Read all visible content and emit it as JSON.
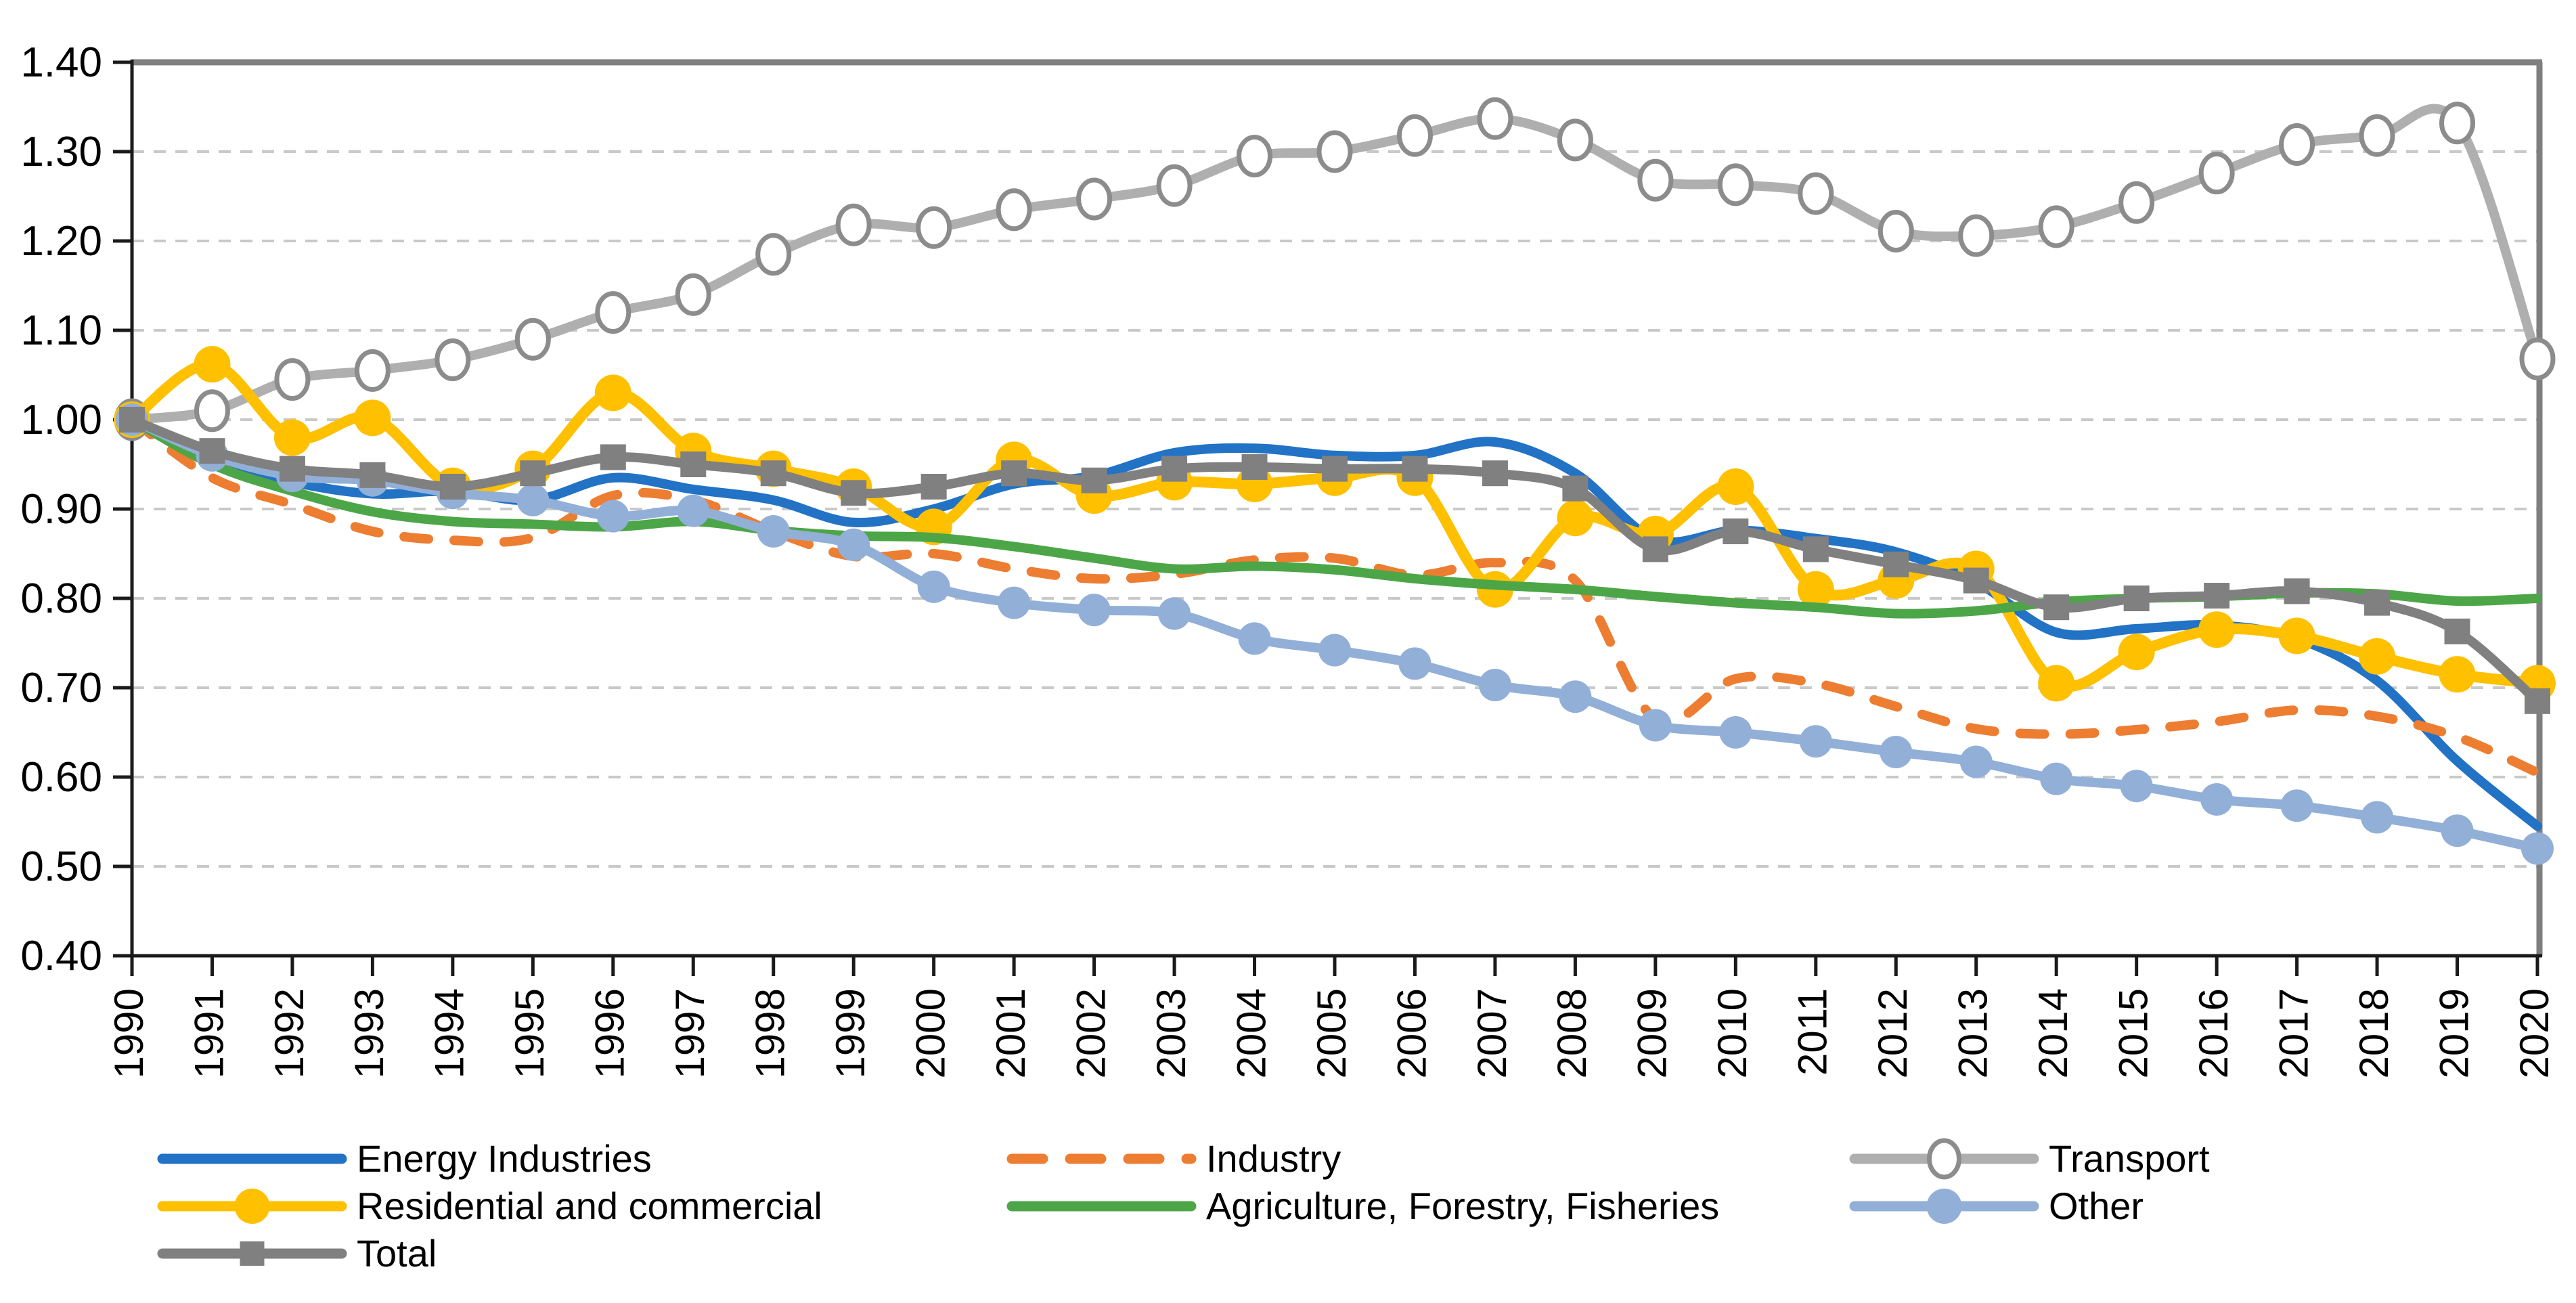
{
  "chart_data": {
    "type": "line",
    "title": "",
    "xlabel": "",
    "ylabel": "",
    "x": [
      1990,
      1991,
      1992,
      1993,
      1994,
      1995,
      1996,
      1997,
      1998,
      1999,
      2000,
      2001,
      2002,
      2003,
      2004,
      2005,
      2006,
      2007,
      2008,
      2009,
      2010,
      2011,
      2012,
      2013,
      2014,
      2015,
      2016,
      2017,
      2018,
      2019,
      2020
    ],
    "ylim": [
      0.4,
      1.4
    ],
    "ytick_step": 0.1,
    "ytick_labels": [
      "0.40",
      "0.50",
      "0.60",
      "0.70",
      "0.80",
      "0.90",
      "1.00",
      "1.10",
      "1.20",
      "1.30",
      "1.40"
    ],
    "grid": "horizontal dashed",
    "legend_position": "bottom",
    "colors": {
      "axis": "#1a1a1a",
      "border": "#7f7f7f",
      "gridline": "#c9c9c9"
    },
    "series": [
      {
        "name": "Energy Industries",
        "color": "#2272c5",
        "style": "solid",
        "marker": "none",
        "legend_col": 0,
        "legend_row": 0,
        "values": [
          1.0,
          0.952,
          0.93,
          0.917,
          0.92,
          0.91,
          0.935,
          0.922,
          0.91,
          0.885,
          0.9,
          0.928,
          0.937,
          0.963,
          0.968,
          0.96,
          0.96,
          0.975,
          0.94,
          0.866,
          0.876,
          0.867,
          0.852,
          0.818,
          0.762,
          0.766,
          0.77,
          0.755,
          0.708,
          0.618,
          0.545
        ]
      },
      {
        "name": "Industry",
        "color": "#ed7d31",
        "style": "dashed",
        "marker": "none",
        "legend_col": 1,
        "legend_row": 0,
        "values": [
          1.0,
          0.935,
          0.905,
          0.875,
          0.865,
          0.868,
          0.915,
          0.91,
          0.875,
          0.847,
          0.85,
          0.833,
          0.822,
          0.827,
          0.843,
          0.845,
          0.826,
          0.84,
          0.82,
          0.665,
          0.71,
          0.705,
          0.679,
          0.654,
          0.648,
          0.653,
          0.662,
          0.675,
          0.668,
          0.645,
          0.605
        ]
      },
      {
        "name": "Transport",
        "color": "#afafaf",
        "style": "solid",
        "marker": "open-circle",
        "legend_col": 2,
        "legend_row": 0,
        "values": [
          1.0,
          1.01,
          1.045,
          1.055,
          1.067,
          1.09,
          1.12,
          1.14,
          1.185,
          1.218,
          1.215,
          1.235,
          1.247,
          1.262,
          1.295,
          1.3,
          1.318,
          1.337,
          1.313,
          1.268,
          1.263,
          1.253,
          1.211,
          1.206,
          1.216,
          1.243,
          1.276,
          1.308,
          1.318,
          1.332,
          1.068
        ]
      },
      {
        "name": "Residential and commercial",
        "color": "#ffc000",
        "style": "solid",
        "marker": "filled-circle",
        "legend_col": 0,
        "legend_row": 1,
        "values": [
          1.0,
          1.062,
          0.98,
          1.002,
          0.926,
          0.945,
          1.03,
          0.965,
          0.945,
          0.925,
          0.88,
          0.955,
          0.915,
          0.93,
          0.928,
          0.935,
          0.935,
          0.81,
          0.89,
          0.872,
          0.925,
          0.81,
          0.82,
          0.833,
          0.705,
          0.74,
          0.765,
          0.758,
          0.735,
          0.715,
          0.705
        ]
      },
      {
        "name": "Agriculture, Forestry, Fisheries",
        "color": "#4ca647",
        "style": "solid",
        "marker": "none",
        "legend_col": 1,
        "legend_row": 1,
        "values": [
          1.0,
          0.95,
          0.92,
          0.897,
          0.886,
          0.883,
          0.88,
          0.886,
          0.876,
          0.87,
          0.868,
          0.858,
          0.845,
          0.833,
          0.836,
          0.832,
          0.822,
          0.815,
          0.81,
          0.802,
          0.795,
          0.79,
          0.783,
          0.786,
          0.796,
          0.8,
          0.802,
          0.806,
          0.805,
          0.797,
          0.8
        ]
      },
      {
        "name": "Other",
        "color": "#92afd7",
        "style": "solid",
        "marker": "filled-circle",
        "legend_col": 2,
        "legend_row": 1,
        "values": [
          1.0,
          0.96,
          0.937,
          0.932,
          0.918,
          0.91,
          0.892,
          0.898,
          0.875,
          0.86,
          0.813,
          0.795,
          0.787,
          0.783,
          0.755,
          0.742,
          0.727,
          0.703,
          0.69,
          0.658,
          0.65,
          0.64,
          0.628,
          0.617,
          0.598,
          0.59,
          0.575,
          0.568,
          0.555,
          0.54,
          0.52
        ]
      },
      {
        "name": "Total",
        "color": "#808080",
        "style": "solid",
        "marker": "filled-square",
        "legend_col": 0,
        "legend_row": 2,
        "values": [
          1.0,
          0.965,
          0.945,
          0.938,
          0.925,
          0.94,
          0.958,
          0.95,
          0.94,
          0.918,
          0.925,
          0.94,
          0.932,
          0.945,
          0.947,
          0.945,
          0.945,
          0.94,
          0.923,
          0.855,
          0.875,
          0.855,
          0.838,
          0.82,
          0.79,
          0.8,
          0.803,
          0.808,
          0.795,
          0.763,
          0.685
        ]
      }
    ]
  }
}
